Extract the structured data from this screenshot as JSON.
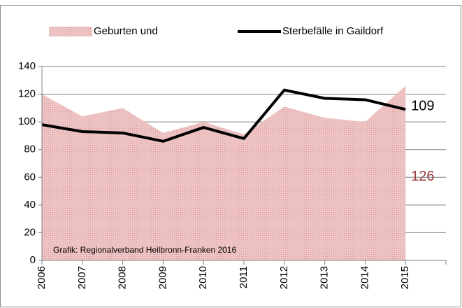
{
  "chart_data": {
    "type": "line",
    "categories": [
      "2006",
      "2007",
      "2008",
      "2009",
      "2010",
      "2011",
      "2012",
      "2013",
      "2014",
      "2015"
    ],
    "series": [
      {
        "name": "Geburten und",
        "kind": "area",
        "color": "#e9b6b6",
        "label_color": "#9b3a3a",
        "values": [
          120,
          104,
          110,
          92,
          100,
          91,
          111,
          103,
          100,
          126
        ]
      },
      {
        "name": "Sterbefälle in Gaildorf",
        "kind": "line",
        "color": "#000000",
        "label_color": "#000000",
        "values": [
          98,
          93,
          92,
          86,
          96,
          88,
          123,
          117,
          116,
          109
        ]
      }
    ],
    "annotation": "Grafik: Regionalverband Heilbronn-Franken 2016",
    "ylim": [
      0,
      140
    ],
    "yticks": [
      0,
      20,
      40,
      60,
      80,
      100,
      120,
      140
    ],
    "grid": true
  }
}
